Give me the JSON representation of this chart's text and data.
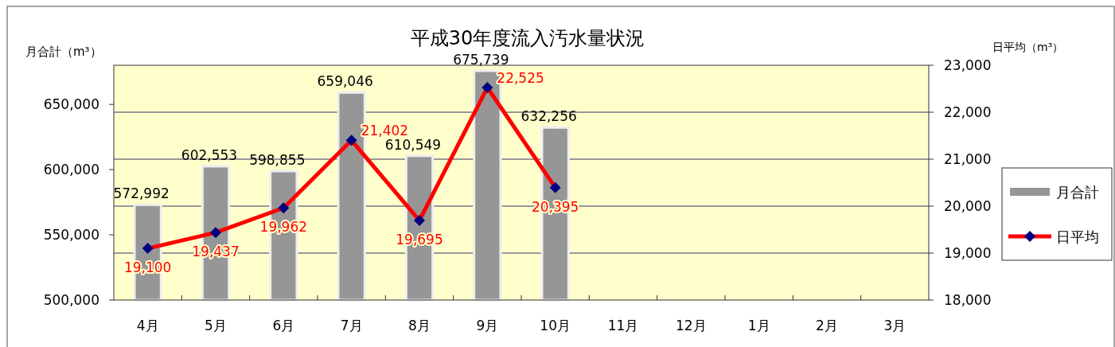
{
  "chart_data": {
    "type": "bar",
    "title": "平成30年度流入汚水量状況",
    "ylabel": "月合計（m³）",
    "y2label": "日平均（m³）",
    "categories": [
      "4月",
      "5月",
      "6月",
      "7月",
      "8月",
      "9月",
      "10月",
      "11月",
      "12月",
      "1月",
      "2月",
      "3月"
    ],
    "series": [
      {
        "name": "月合計",
        "color": "#969696",
        "values": [
          572992,
          602553,
          598855,
          659046,
          610549,
          675739,
          632256,
          null,
          null,
          null,
          null,
          null
        ],
        "value_labels": [
          "572,992",
          "602,553",
          "598,855",
          "659,046",
          "610,549",
          "675,739",
          "632,256",
          null,
          null,
          null,
          null,
          null
        ]
      },
      {
        "name": "日平均",
        "type": "line",
        "axis": "y2",
        "color": "#ff0000",
        "marker": "diamond",
        "values": [
          19100,
          19437,
          19962,
          21402,
          19695,
          22525,
          20395,
          null,
          null,
          null,
          null,
          null
        ],
        "value_labels": [
          "19,100",
          "19,437",
          "19,962",
          "21,402",
          "19,695",
          "22,525",
          "20,395",
          null,
          null,
          null,
          null,
          null
        ]
      }
    ],
    "ylim": [
      500000,
      680000
    ],
    "yticks": [
      {
        "value": 500000,
        "label": "500,000"
      },
      {
        "value": 550000,
        "label": "550,000"
      },
      {
        "value": 600000,
        "label": "600,000"
      },
      {
        "value": 650000,
        "label": "650,000"
      }
    ],
    "y2lim": [
      18000,
      23000
    ],
    "y2ticks": [
      {
        "value": 18000,
        "label": "18,000"
      },
      {
        "value": 19000,
        "label": "19,000"
      },
      {
        "value": 20000,
        "label": "20,000"
      },
      {
        "value": 21000,
        "label": "21,000"
      },
      {
        "value": 22000,
        "label": "22,000"
      },
      {
        "value": 23000,
        "label": "23,000"
      }
    ],
    "grid": true,
    "legend": "right",
    "data_labels": true
  }
}
